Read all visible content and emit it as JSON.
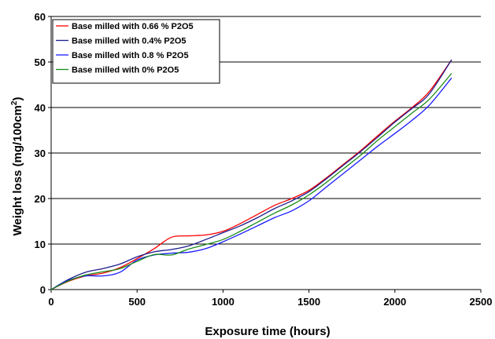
{
  "chart_data": {
    "type": "line",
    "xlabel": "Exposure time (hours)",
    "ylabel_main": "Weight loss (mg/100cm",
    "ylabel_sup": "2",
    "ylabel_end": ")",
    "xlim": [
      0,
      2500
    ],
    "ylim": [
      0,
      60
    ],
    "xticks": [
      "0",
      "500",
      "1000",
      "1500",
      "2000",
      "2500"
    ],
    "yticks": [
      "0",
      "10",
      "20",
      "30",
      "40",
      "50",
      "60"
    ],
    "grid": "horizontal",
    "legend_position": "top-left",
    "series": [
      {
        "name": "Base milled with 0.66 % P2O5",
        "color": "#ff0000",
        "x": [
          0,
          100,
          200,
          300,
          400,
          500,
          600,
          700,
          800,
          900,
          1000,
          1100,
          1200,
          1300,
          1400,
          1500,
          1600,
          1700,
          1800,
          1900,
          2000,
          2100,
          2200,
          2330
        ],
        "y": [
          0,
          1.8,
          3.0,
          3.6,
          4.8,
          6.8,
          9.0,
          11.5,
          11.8,
          12.0,
          12.8,
          14.5,
          16.5,
          18.5,
          20.0,
          21.8,
          24.5,
          27.5,
          30.5,
          33.8,
          37.0,
          40.0,
          43.5,
          50.5
        ]
      },
      {
        "name": "Base milled with 0.4% P2O5",
        "color": "#1c1c8c",
        "x": [
          0,
          100,
          200,
          300,
          400,
          500,
          600,
          700,
          800,
          900,
          1000,
          1100,
          1200,
          1300,
          1400,
          1500,
          1600,
          1700,
          1800,
          1900,
          2000,
          2100,
          2200,
          2330
        ],
        "y": [
          0,
          2.2,
          3.8,
          4.6,
          5.6,
          7.2,
          8.3,
          8.8,
          9.6,
          11.0,
          12.5,
          14.0,
          15.8,
          17.8,
          19.5,
          21.5,
          24.3,
          27.3,
          30.3,
          33.5,
          36.8,
          39.8,
          43.0,
          50.5
        ]
      },
      {
        "name": "Base milled with 0.8 % P2O5",
        "color": "#1a1aff",
        "x": [
          0,
          100,
          200,
          300,
          400,
          500,
          600,
          700,
          800,
          900,
          1000,
          1100,
          1200,
          1300,
          1400,
          1500,
          1600,
          1700,
          1800,
          1900,
          2000,
          2100,
          2200,
          2330
        ],
        "y": [
          0,
          2.0,
          3.0,
          3.0,
          3.8,
          6.5,
          7.6,
          8.0,
          8.2,
          9.0,
          10.5,
          12.2,
          14.0,
          15.8,
          17.3,
          19.5,
          22.5,
          25.5,
          28.5,
          31.5,
          34.3,
          37.2,
          40.5,
          46.5
        ]
      },
      {
        "name": "Base milled with 0% P2O5",
        "color": "#1a8c1a",
        "x": [
          0,
          100,
          200,
          300,
          400,
          500,
          600,
          700,
          800,
          900,
          1000,
          1100,
          1200,
          1300,
          1400,
          1500,
          1600,
          1700,
          1800,
          1900,
          2000,
          2100,
          2200,
          2330
        ],
        "y": [
          0,
          1.9,
          3.2,
          3.9,
          4.6,
          6.2,
          7.7,
          7.6,
          8.9,
          9.9,
          11.0,
          12.8,
          14.8,
          16.8,
          18.6,
          20.8,
          23.5,
          26.5,
          29.5,
          32.8,
          35.8,
          38.8,
          41.8,
          47.5
        ]
      }
    ]
  }
}
